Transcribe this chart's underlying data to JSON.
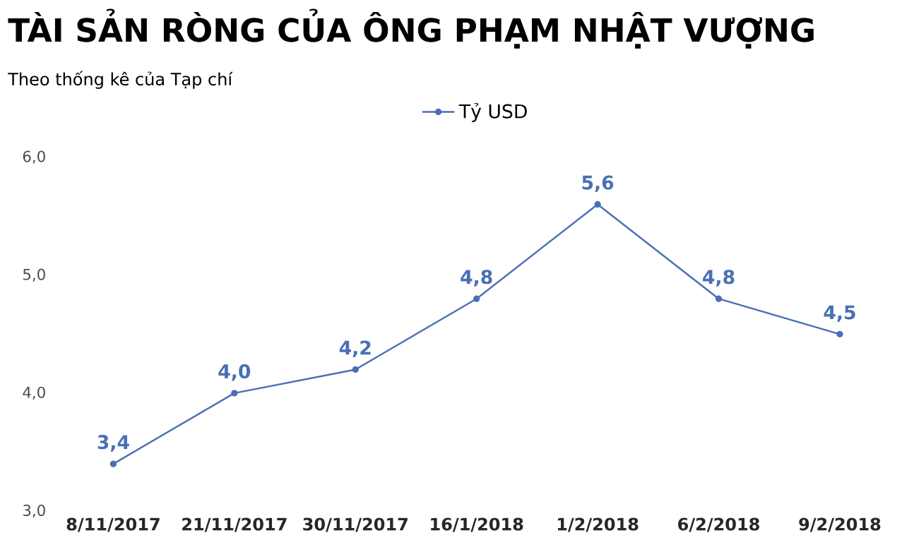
{
  "chart_data": {
    "type": "line",
    "title": "TÀI SẢN RÒNG CỦA ÔNG PHẠM NHẬT VƯỢNG",
    "subtitle": "Theo thống kê của Tạp chí",
    "categories": [
      "8/11/2017",
      "21/11/2017",
      "30/11/2017",
      "16/1/2018",
      "1/2/2018",
      "6/2/2018",
      "9/2/2018"
    ],
    "series": [
      {
        "name": "Tỷ USD",
        "color": "#4a6fb5",
        "values": [
          3.4,
          4.0,
          4.2,
          4.8,
          5.6,
          4.8,
          4.5
        ],
        "value_labels": [
          "3,4",
          "4,0",
          "4,2",
          "4,8",
          "5,6",
          "4,8",
          "4,5"
        ]
      }
    ],
    "ylim": [
      3,
      6
    ],
    "yticks": [
      {
        "value": 3,
        "label": "3,0"
      },
      {
        "value": 4,
        "label": "4,0"
      },
      {
        "value": 5,
        "label": "5,0"
      },
      {
        "value": 6,
        "label": "6,0"
      }
    ],
    "grid": false,
    "legend": "top",
    "marker": "circle",
    "line_style": "solid"
  }
}
